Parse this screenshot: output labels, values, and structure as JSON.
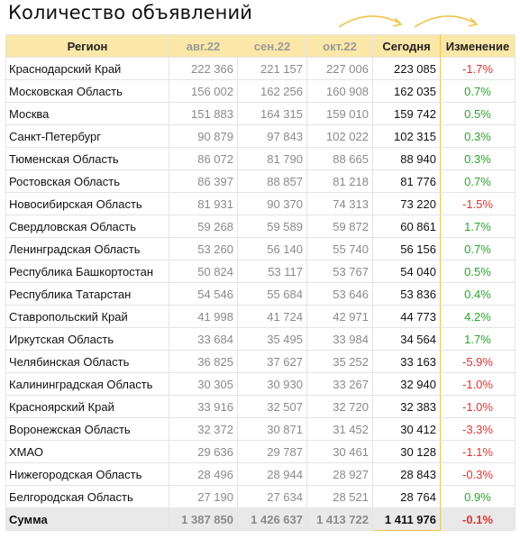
{
  "title": "Количество объявлений",
  "headers": {
    "region": "Регион",
    "aug": "авг.22",
    "sep": "сен.22",
    "oct": "окт.22",
    "today": "Сегодня",
    "change": "Изменение"
  },
  "colors": {
    "positive": "#2aa52a",
    "negative": "#e03232",
    "header_bg": "#fbe7a7",
    "arrow": "#f0c34a"
  },
  "rows": [
    {
      "region": "Краснодарский Край",
      "aug": "222 366",
      "sep": "221 157",
      "oct": "227 006",
      "today": "223 085",
      "change": "-1.7%"
    },
    {
      "region": "Московская Область",
      "aug": "156 002",
      "sep": "162 256",
      "oct": "160 908",
      "today": "162 035",
      "change": "0.7%"
    },
    {
      "region": "Москва",
      "aug": "151 883",
      "sep": "164 315",
      "oct": "159 010",
      "today": "159 742",
      "change": "0.5%"
    },
    {
      "region": "Санкт-Петербург",
      "aug": "90 879",
      "sep": "97 843",
      "oct": "102 022",
      "today": "102 315",
      "change": "0.3%"
    },
    {
      "region": "Тюменская Область",
      "aug": "86 072",
      "sep": "81 790",
      "oct": "88 665",
      "today": "88 940",
      "change": "0.3%"
    },
    {
      "region": "Ростовская Область",
      "aug": "86 397",
      "sep": "88 857",
      "oct": "81 218",
      "today": "81 776",
      "change": "0.7%"
    },
    {
      "region": "Новосибирская Область",
      "aug": "81 931",
      "sep": "90 370",
      "oct": "74 313",
      "today": "73 220",
      "change": "-1.5%"
    },
    {
      "region": "Свердловская Область",
      "aug": "59 268",
      "sep": "59 589",
      "oct": "59 872",
      "today": "60 861",
      "change": "1.7%"
    },
    {
      "region": "Ленинградская Область",
      "aug": "53 260",
      "sep": "56 140",
      "oct": "55 740",
      "today": "56 156",
      "change": "0.7%"
    },
    {
      "region": "Республика Башкортостан",
      "aug": "50 824",
      "sep": "53 117",
      "oct": "53 767",
      "today": "54 040",
      "change": "0.5%"
    },
    {
      "region": "Республика Татарстан",
      "aug": "54 546",
      "sep": "55 684",
      "oct": "53 646",
      "today": "53 836",
      "change": "0.4%"
    },
    {
      "region": "Ставропольский Край",
      "aug": "41 998",
      "sep": "41 724",
      "oct": "42 971",
      "today": "44 773",
      "change": "4.2%"
    },
    {
      "region": "Иркутская Область",
      "aug": "33 684",
      "sep": "35 495",
      "oct": "33 984",
      "today": "34 564",
      "change": "1.7%"
    },
    {
      "region": "Челябинская Область",
      "aug": "36 825",
      "sep": "37 627",
      "oct": "35 252",
      "today": "33 163",
      "change": "-5.9%"
    },
    {
      "region": "Калининградская Область",
      "aug": "30 305",
      "sep": "30 930",
      "oct": "33 267",
      "today": "32 940",
      "change": "-1.0%"
    },
    {
      "region": "Красноярский Край",
      "aug": "33 916",
      "sep": "32 507",
      "oct": "32 720",
      "today": "32 383",
      "change": "-1.0%"
    },
    {
      "region": "Воронежская Область",
      "aug": "32 372",
      "sep": "30 871",
      "oct": "31 452",
      "today": "30 412",
      "change": "-3.3%"
    },
    {
      "region": "ХМАО",
      "aug": "29 636",
      "sep": "29 787",
      "oct": "30 461",
      "today": "30 128",
      "change": "-1.1%"
    },
    {
      "region": "Нижегородская Область",
      "aug": "28 496",
      "sep": "28 944",
      "oct": "28 927",
      "today": "28 843",
      "change": "-0.3%"
    },
    {
      "region": "Белгородская Область",
      "aug": "27 190",
      "sep": "27 634",
      "oct": "28 521",
      "today": "28 764",
      "change": "0.9%"
    }
  ],
  "sum": {
    "region": "Сумма",
    "aug": "1 387 850",
    "sep": "1 426 637",
    "oct": "1 413 722",
    "today": "1 411 976",
    "change": "-0.1%"
  }
}
